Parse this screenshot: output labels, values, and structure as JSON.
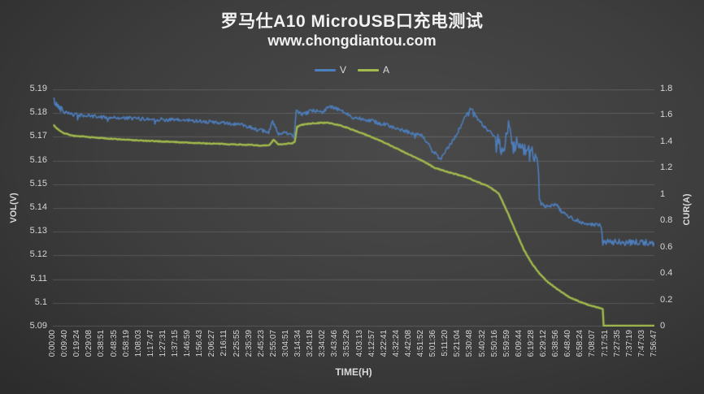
{
  "colors": {
    "background": "#3e3e3e",
    "text": "#f2f2f2",
    "tick_text": "#d6d6d6",
    "grid": "rgba(255,255,255,0.14)",
    "series_v": "#4d7ebd",
    "series_a": "#a2bb4c"
  },
  "chart_data": {
    "type": "line",
    "title": "罗马仕A10 MicroUSB口充电测试",
    "subtitle": "www.chongdiantou.com",
    "legend_position": "top-center",
    "grid": "horizontal-only",
    "x_axis": {
      "label": "TIME(H)",
      "total_hours": 7.9464,
      "tick_labels": [
        "0:00:00",
        "0:09:40",
        "0:19:24",
        "0:29:08",
        "0:38:51",
        "0:48:35",
        "0:58:19",
        "1:08:03",
        "1:17:47",
        "1:27:31",
        "1:37:15",
        "1:46:59",
        "1:56:43",
        "2:06:27",
        "2:16:11",
        "2:25:55",
        "2:35:39",
        "2:45:23",
        "2:55:07",
        "3:04:51",
        "3:14:34",
        "3:24:18",
        "3:34:02",
        "3:43:46",
        "3:53:29",
        "4:03:13",
        "4:12:57",
        "4:22:41",
        "4:32:24",
        "4:42:08",
        "4:51:52",
        "5:01:36",
        "5:11:20",
        "5:21:04",
        "5:30:48",
        "5:40:32",
        "5:50:16",
        "5:59:59",
        "6:09:44",
        "6:19:28",
        "6:29:12",
        "6:38:56",
        "6:48:40",
        "6:58:24",
        "7:08:07",
        "7:17:51",
        "7:27:35",
        "7:37:19",
        "7:47:03",
        "7:56:47"
      ]
    },
    "y_left": {
      "label": "VOL(V)",
      "min": 5.09,
      "max": 5.19,
      "ticks": [
        "5.19",
        "5.18",
        "5.17",
        "5.16",
        "5.15",
        "5.14",
        "5.13",
        "5.12",
        "5.11",
        "5.1",
        "5.09"
      ]
    },
    "y_right": {
      "label": "CUR(A)",
      "min": 0,
      "max": 1.8,
      "ticks": [
        "1.8",
        "1.6",
        "1.4",
        "1.2",
        "1",
        "0.8",
        "0.6",
        "0.4",
        "0.2",
        "0"
      ]
    },
    "series": [
      {
        "name": "V",
        "axis": "left",
        "color": "#4d7ebd",
        "width": 1.6,
        "band": 0.0008,
        "dip_prob": 0.03,
        "seed": 42,
        "band_zones": [
          [
            0,
            0.15,
            0.0015
          ],
          [
            5.85,
            6.45,
            0.0028
          ],
          [
            7.25,
            8,
            0.0014
          ]
        ],
        "points": [
          [
            0.0,
            5.186
          ],
          [
            0.032,
            5.1838
          ],
          [
            0.107,
            5.1818
          ],
          [
            0.268,
            5.1793
          ],
          [
            0.698,
            5.1782
          ],
          [
            1.235,
            5.1775
          ],
          [
            1.879,
            5.1768
          ],
          [
            2.523,
            5.175
          ],
          [
            2.717,
            5.1728
          ],
          [
            2.845,
            5.1718
          ],
          [
            2.899,
            5.177
          ],
          [
            2.974,
            5.1707
          ],
          [
            3.082,
            5.1718
          ],
          [
            3.146,
            5.1722
          ],
          [
            3.178,
            5.169
          ],
          [
            3.211,
            5.1812
          ],
          [
            3.286,
            5.1792
          ],
          [
            3.425,
            5.181
          ],
          [
            3.554,
            5.1806
          ],
          [
            3.64,
            5.1828
          ],
          [
            3.79,
            5.1812
          ],
          [
            3.962,
            5.1782
          ],
          [
            4.145,
            5.1773
          ],
          [
            4.327,
            5.1756
          ],
          [
            4.499,
            5.1741
          ],
          [
            4.681,
            5.172
          ],
          [
            4.864,
            5.1706
          ],
          [
            4.971,
            5.1662
          ],
          [
            5.111,
            5.1602
          ],
          [
            5.218,
            5.1656
          ],
          [
            5.325,
            5.1706
          ],
          [
            5.433,
            5.178
          ],
          [
            5.519,
            5.1821
          ],
          [
            5.615,
            5.1771
          ],
          [
            5.723,
            5.1729
          ],
          [
            5.83,
            5.1707
          ],
          [
            5.884,
            5.1681
          ],
          [
            5.938,
            5.162
          ],
          [
            6.024,
            5.176
          ],
          [
            6.077,
            5.1651
          ],
          [
            6.131,
            5.168
          ],
          [
            6.185,
            5.165
          ],
          [
            6.238,
            5.1639
          ],
          [
            6.292,
            5.1668
          ],
          [
            6.346,
            5.1617
          ],
          [
            6.4,
            5.16
          ],
          [
            6.41,
            5.1572
          ],
          [
            6.421,
            5.1438
          ],
          [
            6.475,
            5.1411
          ],
          [
            6.539,
            5.1405
          ],
          [
            6.646,
            5.1415
          ],
          [
            6.722,
            5.1381
          ],
          [
            6.829,
            5.1361
          ],
          [
            6.969,
            5.1341
          ],
          [
            7.119,
            5.1329
          ],
          [
            7.237,
            5.1326
          ],
          [
            7.259,
            5.1256
          ],
          [
            7.946,
            5.1253
          ]
        ]
      },
      {
        "name": "A",
        "axis": "right",
        "color": "#a2bb4c",
        "width": 2.4,
        "band": 0.003,
        "dip_prob": 0,
        "seed": 7,
        "band_zones": [],
        "points": [
          [
            0.0,
            1.53
          ],
          [
            0.054,
            1.5
          ],
          [
            0.14,
            1.468
          ],
          [
            0.268,
            1.448
          ],
          [
            0.483,
            1.437
          ],
          [
            0.838,
            1.422
          ],
          [
            1.203,
            1.41
          ],
          [
            1.557,
            1.402
          ],
          [
            1.911,
            1.392
          ],
          [
            2.276,
            1.385
          ],
          [
            2.631,
            1.378
          ],
          [
            2.76,
            1.372
          ],
          [
            2.856,
            1.376
          ],
          [
            2.91,
            1.418
          ],
          [
            2.974,
            1.381
          ],
          [
            3.092,
            1.389
          ],
          [
            3.157,
            1.392
          ],
          [
            3.189,
            1.4
          ],
          [
            3.221,
            1.515
          ],
          [
            3.286,
            1.532
          ],
          [
            3.425,
            1.542
          ],
          [
            3.608,
            1.548
          ],
          [
            3.79,
            1.527
          ],
          [
            3.962,
            1.492
          ],
          [
            4.145,
            1.452
          ],
          [
            4.327,
            1.41
          ],
          [
            4.499,
            1.362
          ],
          [
            4.681,
            1.31
          ],
          [
            4.864,
            1.262
          ],
          [
            5.036,
            1.205
          ],
          [
            5.218,
            1.172
          ],
          [
            5.465,
            1.132
          ],
          [
            5.755,
            1.062
          ],
          [
            5.884,
            1.01
          ],
          [
            6.002,
            0.865
          ],
          [
            6.11,
            0.722
          ],
          [
            6.217,
            0.583
          ],
          [
            6.324,
            0.477
          ],
          [
            6.432,
            0.396
          ],
          [
            6.539,
            0.335
          ],
          [
            6.689,
            0.272
          ],
          [
            6.829,
            0.218
          ],
          [
            6.969,
            0.186
          ],
          [
            7.098,
            0.159
          ],
          [
            7.216,
            0.141
          ],
          [
            7.259,
            0.135
          ],
          [
            7.27,
            0.0
          ],
          [
            7.946,
            0.0
          ]
        ]
      }
    ]
  }
}
